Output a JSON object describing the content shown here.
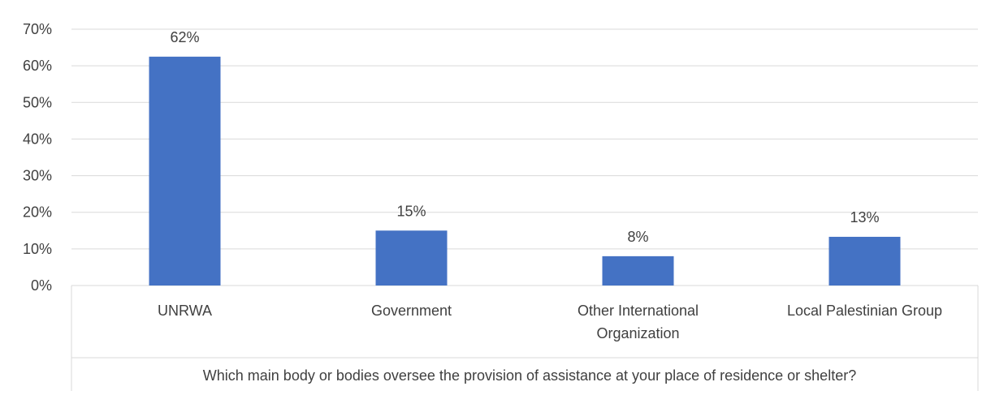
{
  "chart_data": {
    "type": "bar",
    "categories": [
      [
        "UNRWA"
      ],
      [
        "Government"
      ],
      [
        "Other International",
        "Organization"
      ],
      [
        "Local Palestinian Group"
      ]
    ],
    "values": [
      62.5,
      15,
      8,
      13.3
    ],
    "value_labels": [
      "62%",
      "15%",
      "8%",
      "13%"
    ],
    "xlabel": "Which main body or bodies oversee the provision of assistance at your place of residence or shelter?",
    "ylabel": "",
    "ylim": [
      0,
      70
    ],
    "yticks": [
      "0%",
      "10%",
      "20%",
      "30%",
      "40%",
      "50%",
      "60%",
      "70%"
    ],
    "grid": true,
    "bar_color": "#4472c4",
    "grid_color": "#d9d9d9",
    "text_color": "#404040"
  }
}
